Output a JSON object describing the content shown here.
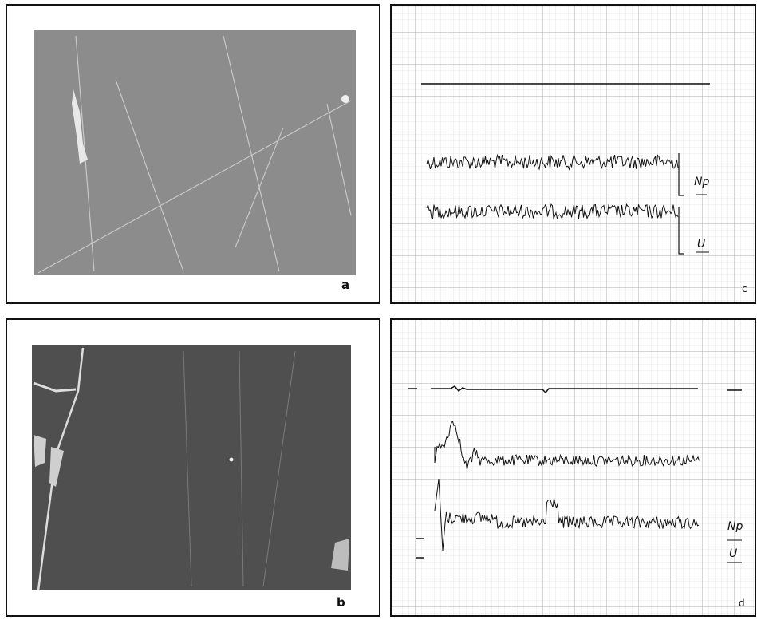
{
  "panels": [
    {
      "label": "a"
    },
    {
      "label": "c",
      "trace_labels": [
        "Np",
        "U"
      ]
    },
    {
      "label": "b"
    },
    {
      "label": "d",
      "trace_labels": [
        "Np",
        "U"
      ]
    }
  ]
}
